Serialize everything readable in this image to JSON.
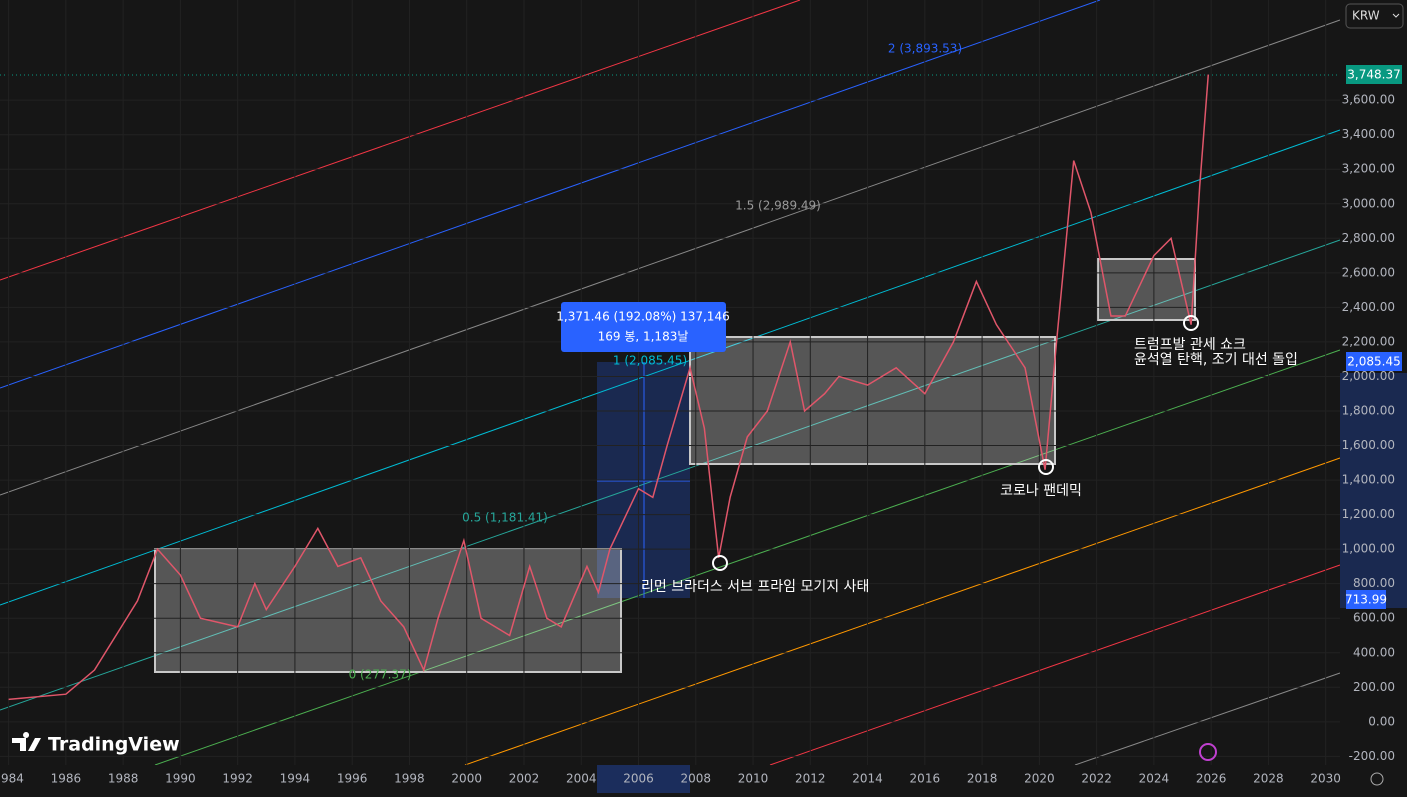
{
  "chart_data": {
    "type": "line",
    "currency": "KRW",
    "brand": "TradingView",
    "color": "#e0566a",
    "x": [
      1984,
      1986,
      1987,
      1988.5,
      1989.2,
      1990,
      1990.7,
      1992,
      1992.6,
      1993,
      1994,
      1994.8,
      1995.5,
      1996.3,
      1997,
      1997.8,
      1998.5,
      1999,
      1999.9,
      2000.5,
      2001,
      2001.5,
      2002.2,
      2002.8,
      2003.3,
      2004.2,
      2004.6,
      2005,
      2006,
      2006.5,
      2007,
      2007.8,
      2008.3,
      2008.8,
      2009.2,
      2009.8,
      2010.5,
      2011.3,
      2011.8,
      2012.5,
      2013,
      2014,
      2015,
      2016,
      2017,
      2017.8,
      2018.5,
      2019.5,
      2020.2,
      2020.6,
      2021.2,
      2021.8,
      2022.5,
      2023,
      2024,
      2024.6,
      2025.3,
      2025.6,
      2025.9
    ],
    "values": [
      130,
      160,
      300,
      700,
      1000,
      850,
      600,
      550,
      800,
      650,
      900,
      1120,
      900,
      950,
      700,
      550,
      300,
      600,
      1050,
      600,
      550,
      500,
      900,
      600,
      550,
      900,
      750,
      1000,
      1350,
      1300,
      1600,
      2050,
      1700,
      950,
      1300,
      1650,
      1800,
      2200,
      1800,
      1900,
      2000,
      1950,
      2050,
      1900,
      2200,
      2550,
      2300,
      2050,
      1460,
      2200,
      3250,
      2950,
      2350,
      2350,
      2700,
      2800,
      2300,
      3100,
      3748
    ],
    "xlim": [
      1983.7,
      2030.5
    ],
    "xticks": [
      1984,
      1986,
      1988,
      1990,
      1992,
      1994,
      1996,
      1998,
      2000,
      2002,
      2004,
      2006,
      2008,
      2010,
      2012,
      2014,
      2016,
      2018,
      2020,
      2022,
      2024,
      2026,
      2028,
      2030
    ],
    "ylim": [
      -250,
      4180
    ],
    "yticks": [
      {
        "value": -200,
        "label": "-200.00"
      },
      {
        "value": 0,
        "label": "0.00"
      },
      {
        "value": 200,
        "label": "200.00"
      },
      {
        "value": 400,
        "label": "400.00"
      },
      {
        "value": 600,
        "label": "600.00"
      },
      {
        "value": 800,
        "label": "800.00"
      },
      {
        "value": 1000,
        "label": "1,000.00"
      },
      {
        "value": 1200,
        "label": "1,200.00"
      },
      {
        "value": 1400,
        "label": "1,400.00"
      },
      {
        "value": 1600,
        "label": "1,600.00"
      },
      {
        "value": 1800,
        "label": "1,800.00"
      },
      {
        "value": 2000,
        "label": "2,000.00"
      },
      {
        "value": 2200,
        "label": "2,200.00"
      },
      {
        "value": 2400,
        "label": "2,400.00"
      },
      {
        "value": 2600,
        "label": "2,600.00"
      },
      {
        "value": 2800,
        "label": "2,800.00"
      },
      {
        "value": 3000,
        "label": "3,000.00"
      },
      {
        "value": 3200,
        "label": "3,200.00"
      },
      {
        "value": 3400,
        "label": "3,400.00"
      },
      {
        "value": 3600,
        "label": "3,600.00"
      }
    ],
    "price_labels": [
      "3,748.37",
      "2,085.45",
      "713.99"
    ],
    "channel_labels": [
      "2 (3,893.53)",
      "1.5 (2,989.49)",
      "1 (2,085.45)",
      "0.5 (1,181.41)",
      "0 (277.37)"
    ],
    "measure": [
      "1,371.46 (192.08%) 137,146",
      "169 봉, 1,183날"
    ],
    "annotations": [
      "리먼 브라더스 서브 프라임 모기지 사태",
      "코로나 팬데믹",
      "트럼프발 관세 쇼크",
      "윤석열 탄핵, 조기 대선 돌입"
    ]
  }
}
